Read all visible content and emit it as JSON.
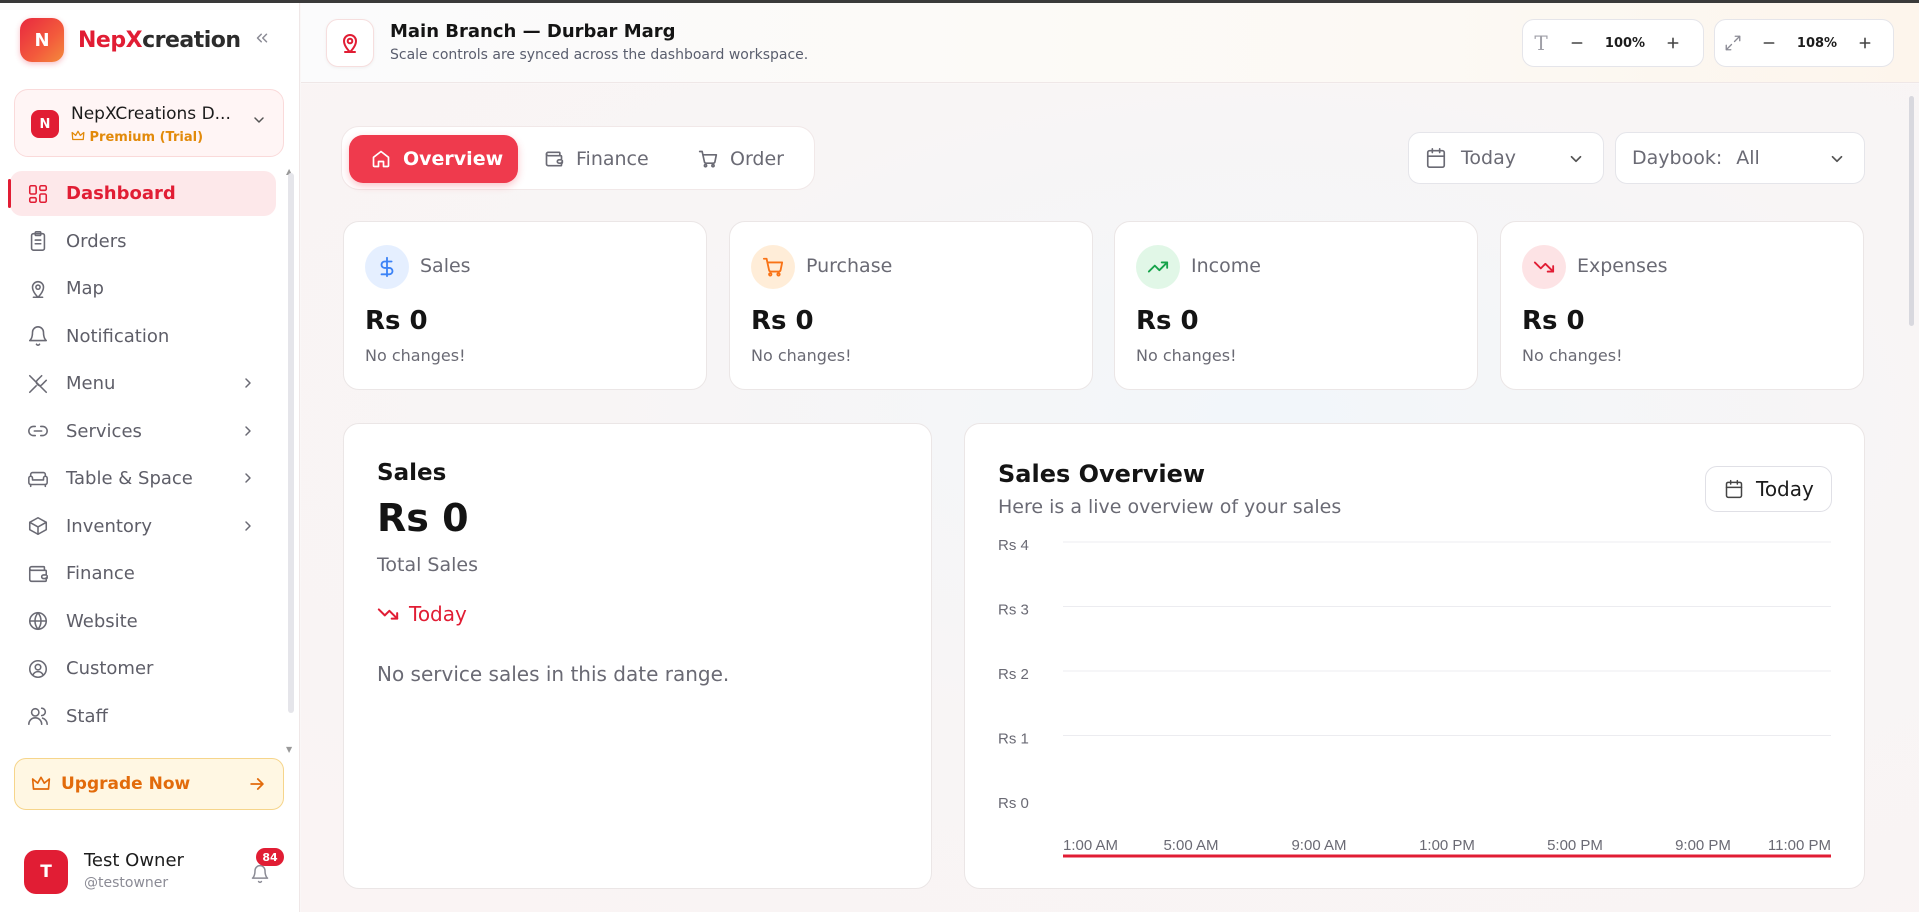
{
  "brand": {
    "logo_letter": "N",
    "name_part1": "Nep",
    "name_part2": "X",
    "name_part3": "creation"
  },
  "workspace": {
    "avatar_letter": "N",
    "name": "NepXCreations D...",
    "plan": "Premium (Trial)"
  },
  "sidebar": {
    "items": [
      {
        "label": "Dashboard",
        "icon": "dashboard-icon",
        "active": true,
        "has_children": false
      },
      {
        "label": "Orders",
        "icon": "clipboard-icon",
        "active": false,
        "has_children": false
      },
      {
        "label": "Map",
        "icon": "map-pin-icon",
        "active": false,
        "has_children": false
      },
      {
        "label": "Notification",
        "icon": "bell-icon",
        "active": false,
        "has_children": false
      },
      {
        "label": "Menu",
        "icon": "utensils-icon",
        "active": false,
        "has_children": true
      },
      {
        "label": "Services",
        "icon": "link-icon",
        "active": false,
        "has_children": true
      },
      {
        "label": "Table & Space",
        "icon": "sofa-icon",
        "active": false,
        "has_children": true
      },
      {
        "label": "Inventory",
        "icon": "box-icon",
        "active": false,
        "has_children": true
      },
      {
        "label": "Finance",
        "icon": "wallet-icon",
        "active": false,
        "has_children": false
      },
      {
        "label": "Website",
        "icon": "globe-icon",
        "active": false,
        "has_children": false
      },
      {
        "label": "Customer",
        "icon": "user-circle-icon",
        "active": false,
        "has_children": false
      },
      {
        "label": "Staff",
        "icon": "users-icon",
        "active": false,
        "has_children": false
      }
    ],
    "upgrade_label": "Upgrade Now"
  },
  "user": {
    "avatar_letter": "T",
    "name": "Test Owner",
    "handle": "@testowner",
    "notification_count": "84"
  },
  "header": {
    "title": "Main Branch — Durbar Marg",
    "subtitle": "Scale controls are synced across the dashboard workspace.",
    "text_scale": "100%",
    "zoom_scale": "108%"
  },
  "tabs": [
    {
      "label": "Overview",
      "icon": "home-icon",
      "active": true
    },
    {
      "label": "Finance",
      "icon": "wallet-icon",
      "active": false
    },
    {
      "label": "Order",
      "icon": "cart-icon",
      "active": false
    }
  ],
  "filters": {
    "date": "Today",
    "daybook_label": "Daybook:",
    "daybook_value": "All"
  },
  "stats": [
    {
      "label": "Sales",
      "value": "Rs 0",
      "change": "No changes!",
      "icon": "dollar-icon",
      "color": "#3b82f6",
      "bg": "#e5efff"
    },
    {
      "label": "Purchase",
      "value": "Rs 0",
      "change": "No changes!",
      "icon": "cart-icon",
      "color": "#f97316",
      "bg": "#ffedd8"
    },
    {
      "label": "Income",
      "value": "Rs 0",
      "change": "No changes!",
      "icon": "trend-up-icon",
      "color": "#16a34a",
      "bg": "#e1f7e7"
    },
    {
      "label": "Expenses",
      "value": "Rs 0",
      "change": "No changes!",
      "icon": "trend-down-icon",
      "color": "#e11d34",
      "bg": "#fde3e5"
    }
  ],
  "sales_card": {
    "title": "Sales",
    "value": "Rs 0",
    "subtitle": "Total Sales",
    "trend_label": "Today",
    "empty_message": "No service sales in this date range."
  },
  "overview": {
    "title": "Sales Overview",
    "subtitle": "Here is a live overview of your sales",
    "range_button": "Today"
  },
  "chart_data": {
    "type": "line",
    "x": [
      "1:00 AM",
      "5:00 AM",
      "9:00 AM",
      "1:00 PM",
      "5:00 PM",
      "9:00 PM",
      "11:00 PM"
    ],
    "y_ticks": [
      "Rs 4",
      "Rs 3",
      "Rs 2",
      "Rs 1",
      "Rs 0"
    ],
    "series": [
      {
        "values": [
          0,
          0,
          0,
          0,
          0,
          0,
          0
        ],
        "color": "#e11d34"
      }
    ],
    "ylim": [
      0,
      4
    ],
    "grid": true
  }
}
